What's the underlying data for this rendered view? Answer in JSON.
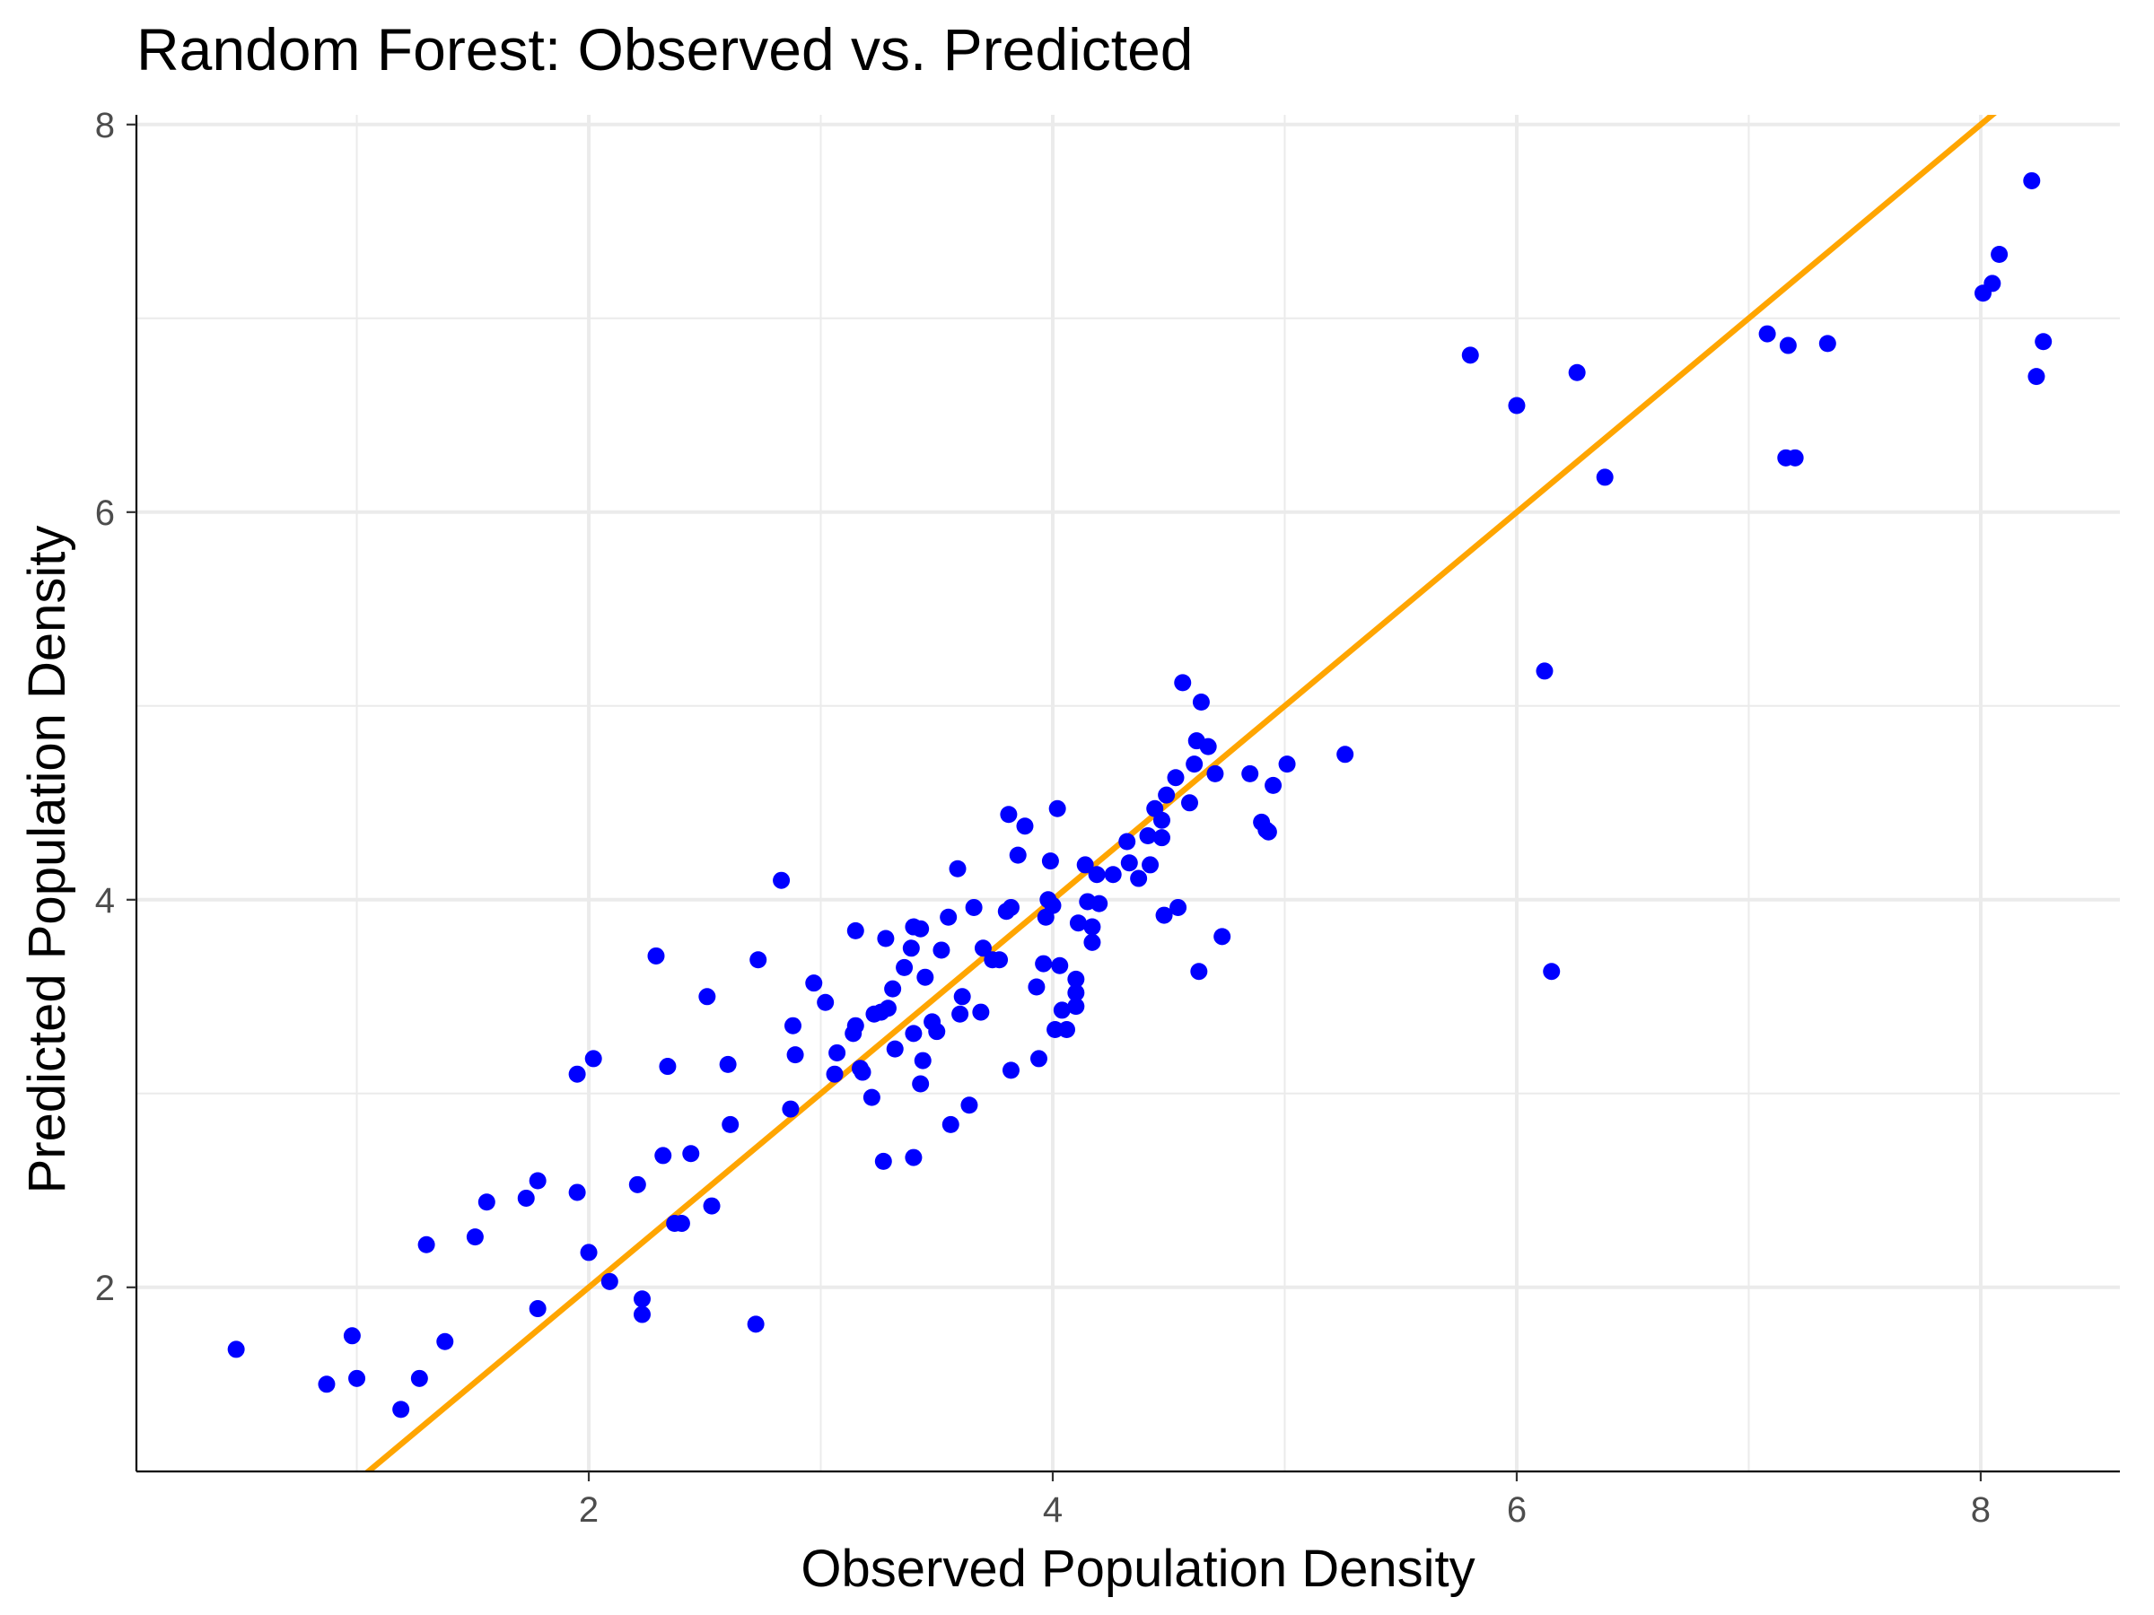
{
  "chart_data": {
    "type": "scatter",
    "title": "Random Forest: Observed vs. Predicted",
    "xlabel": "Observed Population Density",
    "ylabel": "Predicted Population Density",
    "xlim": [
      0.05,
      8.6
    ],
    "ylim": [
      1.05,
      8.05
    ],
    "x_ticks": [
      2,
      4,
      6,
      8
    ],
    "x_tick_labels": [
      "2",
      "4",
      "6",
      "8"
    ],
    "y_ticks": [
      2,
      4,
      6,
      8
    ],
    "y_tick_labels": [
      "2",
      "4",
      "6",
      "8"
    ],
    "x_minor_ticks": [
      1,
      3,
      5,
      7
    ],
    "y_minor_ticks": [
      3,
      5,
      7
    ],
    "grid": true,
    "point_color": "#0000ff",
    "line_color": "#ffa500",
    "reference_line": {
      "type": "identity",
      "slope": 1,
      "intercept": 0
    },
    "points": [
      [
        0.48,
        1.68
      ],
      [
        0.87,
        1.5
      ],
      [
        0.98,
        1.75
      ],
      [
        1.0,
        1.53
      ],
      [
        1.19,
        1.37
      ],
      [
        1.27,
        1.53
      ],
      [
        1.3,
        2.22
      ],
      [
        1.38,
        1.72
      ],
      [
        1.51,
        2.26
      ],
      [
        1.56,
        2.44
      ],
      [
        1.73,
        2.46
      ],
      [
        1.78,
        2.55
      ],
      [
        1.78,
        1.89
      ],
      [
        1.95,
        3.1
      ],
      [
        1.95,
        2.49
      ],
      [
        2.0,
        2.18
      ],
      [
        2.02,
        3.18
      ],
      [
        2.09,
        2.03
      ],
      [
        2.21,
        2.53
      ],
      [
        2.23,
        1.94
      ],
      [
        2.23,
        1.86
      ],
      [
        2.29,
        3.71
      ],
      [
        2.32,
        2.68
      ],
      [
        2.34,
        3.14
      ],
      [
        2.37,
        2.33
      ],
      [
        2.4,
        2.33
      ],
      [
        2.44,
        2.69
      ],
      [
        2.51,
        3.5
      ],
      [
        2.53,
        2.42
      ],
      [
        2.6,
        3.15
      ],
      [
        2.61,
        2.84
      ],
      [
        2.72,
        1.81
      ],
      [
        2.73,
        3.69
      ],
      [
        2.83,
        4.1
      ],
      [
        2.87,
        2.92
      ],
      [
        2.88,
        3.35
      ],
      [
        2.89,
        3.2
      ],
      [
        2.97,
        3.57
      ],
      [
        3.02,
        3.47
      ],
      [
        3.06,
        3.1
      ],
      [
        3.07,
        3.21
      ],
      [
        3.14,
        3.31
      ],
      [
        3.15,
        3.84
      ],
      [
        3.15,
        3.35
      ],
      [
        3.17,
        3.13
      ],
      [
        3.18,
        3.11
      ],
      [
        3.22,
        2.98
      ],
      [
        3.23,
        3.41
      ],
      [
        3.26,
        3.42
      ],
      [
        3.27,
        2.65
      ],
      [
        3.28,
        3.8
      ],
      [
        3.29,
        3.44
      ],
      [
        3.31,
        3.54
      ],
      [
        3.32,
        3.23
      ],
      [
        3.36,
        3.65
      ],
      [
        3.39,
        3.75
      ],
      [
        3.4,
        3.31
      ],
      [
        3.4,
        2.67
      ],
      [
        3.4,
        3.86
      ],
      [
        3.43,
        3.85
      ],
      [
        3.43,
        3.05
      ],
      [
        3.44,
        3.17
      ],
      [
        3.45,
        3.6
      ],
      [
        3.48,
        3.37
      ],
      [
        3.5,
        3.32
      ],
      [
        3.52,
        3.74
      ],
      [
        3.55,
        3.91
      ],
      [
        3.56,
        2.84
      ],
      [
        3.59,
        4.16
      ],
      [
        3.6,
        3.41
      ],
      [
        3.61,
        3.5
      ],
      [
        3.64,
        2.94
      ],
      [
        3.66,
        3.96
      ],
      [
        3.69,
        3.42
      ],
      [
        3.7,
        3.75
      ],
      [
        3.74,
        3.69
      ],
      [
        3.77,
        3.69
      ],
      [
        3.8,
        3.94
      ],
      [
        3.81,
        4.44
      ],
      [
        3.82,
        3.12
      ],
      [
        3.82,
        3.96
      ],
      [
        3.85,
        4.23
      ],
      [
        3.88,
        4.38
      ],
      [
        3.93,
        3.55
      ],
      [
        3.94,
        3.18
      ],
      [
        3.96,
        3.67
      ],
      [
        3.97,
        3.91
      ],
      [
        3.98,
        4.0
      ],
      [
        3.99,
        4.2
      ],
      [
        4.0,
        3.97
      ],
      [
        4.01,
        3.33
      ],
      [
        4.02,
        4.47
      ],
      [
        4.03,
        3.66
      ],
      [
        4.04,
        3.43
      ],
      [
        4.06,
        3.33
      ],
      [
        4.1,
        3.52
      ],
      [
        4.1,
        3.59
      ],
      [
        4.1,
        3.45
      ],
      [
        4.11,
        3.88
      ],
      [
        4.14,
        4.18
      ],
      [
        4.15,
        3.99
      ],
      [
        4.17,
        3.86
      ],
      [
        4.17,
        3.78
      ],
      [
        4.19,
        4.13
      ],
      [
        4.2,
        3.98
      ],
      [
        4.26,
        4.13
      ],
      [
        4.32,
        4.3
      ],
      [
        4.33,
        4.19
      ],
      [
        4.37,
        4.11
      ],
      [
        4.41,
        4.33
      ],
      [
        4.42,
        4.18
      ],
      [
        4.44,
        4.47
      ],
      [
        4.47,
        4.41
      ],
      [
        4.47,
        4.32
      ],
      [
        4.48,
        3.92
      ],
      [
        4.49,
        4.54
      ],
      [
        4.53,
        4.63
      ],
      [
        4.54,
        3.96
      ],
      [
        4.56,
        5.12
      ],
      [
        4.59,
        4.5
      ],
      [
        4.61,
        4.7
      ],
      [
        4.62,
        4.82
      ],
      [
        4.63,
        3.63
      ],
      [
        4.64,
        5.02
      ],
      [
        4.67,
        4.79
      ],
      [
        4.7,
        4.65
      ],
      [
        4.73,
        3.81
      ],
      [
        4.85,
        4.65
      ],
      [
        4.9,
        4.4
      ],
      [
        4.92,
        4.36
      ],
      [
        4.93,
        4.35
      ],
      [
        4.95,
        4.59
      ],
      [
        5.01,
        4.7
      ],
      [
        5.26,
        4.75
      ],
      [
        5.8,
        6.81
      ],
      [
        6.0,
        6.55
      ],
      [
        6.12,
        5.18
      ],
      [
        6.15,
        3.63
      ],
      [
        6.26,
        6.72
      ],
      [
        6.38,
        6.18
      ],
      [
        7.08,
        6.92
      ],
      [
        7.16,
        6.28
      ],
      [
        7.17,
        6.86
      ],
      [
        7.2,
        6.28
      ],
      [
        7.34,
        6.87
      ],
      [
        8.01,
        7.13
      ],
      [
        8.05,
        7.18
      ],
      [
        8.08,
        7.33
      ],
      [
        8.22,
        7.71
      ],
      [
        8.24,
        6.7
      ],
      [
        8.27,
        6.88
      ]
    ]
  }
}
